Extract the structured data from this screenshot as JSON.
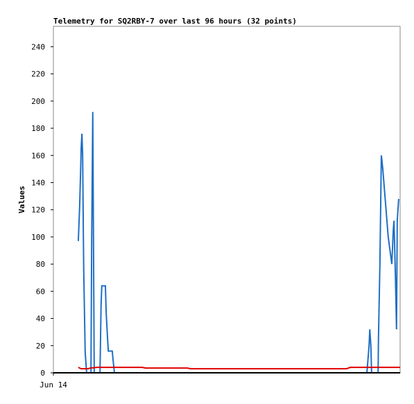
{
  "chart_data": {
    "type": "line",
    "title": "Telemetry for SQ2RBY-7 over last 96 hours (32 points)",
    "y_label": "Values",
    "xlim": [
      0,
      96
    ],
    "xticks": [
      {
        "value": 0,
        "label": "Jun 14"
      }
    ],
    "ylim": [
      0,
      255
    ],
    "yticks": [
      0,
      20,
      40,
      60,
      80,
      100,
      120,
      140,
      160,
      180,
      200,
      220,
      240
    ],
    "series": [
      {
        "color": "#1f6fc5",
        "x": [
          6.9,
          7.3,
          7.5,
          7.7,
          7.9,
          8.1,
          8.3,
          8.4,
          8.6,
          8.8,
          9.2,
          10.4,
          10.6,
          10.8,
          10.9,
          11.1,
          11.3,
          12.9,
          13.2,
          13.4,
          14.4,
          14.6,
          15.0,
          15.2,
          16.3,
          16.5,
          16.9,
          50,
          86.8,
          87.4,
          87.6,
          87.9,
          88.1,
          89.9,
          90.0,
          90.4,
          90.8,
          91.2,
          91.8,
          92.7,
          93.7,
          94.1,
          94.3,
          94.7,
          95.0,
          95.2,
          95.6
        ],
        "values": [
          97,
          125,
          145,
          166,
          176,
          160,
          100,
          75,
          45,
          15,
          0,
          0,
          97,
          160,
          192,
          97,
          0,
          0,
          50,
          64,
          64,
          45,
          25,
          16,
          16,
          10,
          0,
          null,
          0,
          20,
          32,
          20,
          0,
          0,
          25,
          80,
          160,
          150,
          130,
          100,
          80,
          105,
          112,
          70,
          32,
          112,
          128
        ]
      },
      {
        "color": "#e00000",
        "x": [
          6.9,
          7.7,
          9.6,
          10.2,
          12.1,
          24.6,
          25.5,
          37.1,
          38.0,
          81.2,
          82.2,
          96
        ],
        "values": [
          4,
          3,
          3,
          3.5,
          4,
          4,
          3.5,
          3.5,
          3,
          3,
          4,
          4
        ]
      }
    ]
  }
}
